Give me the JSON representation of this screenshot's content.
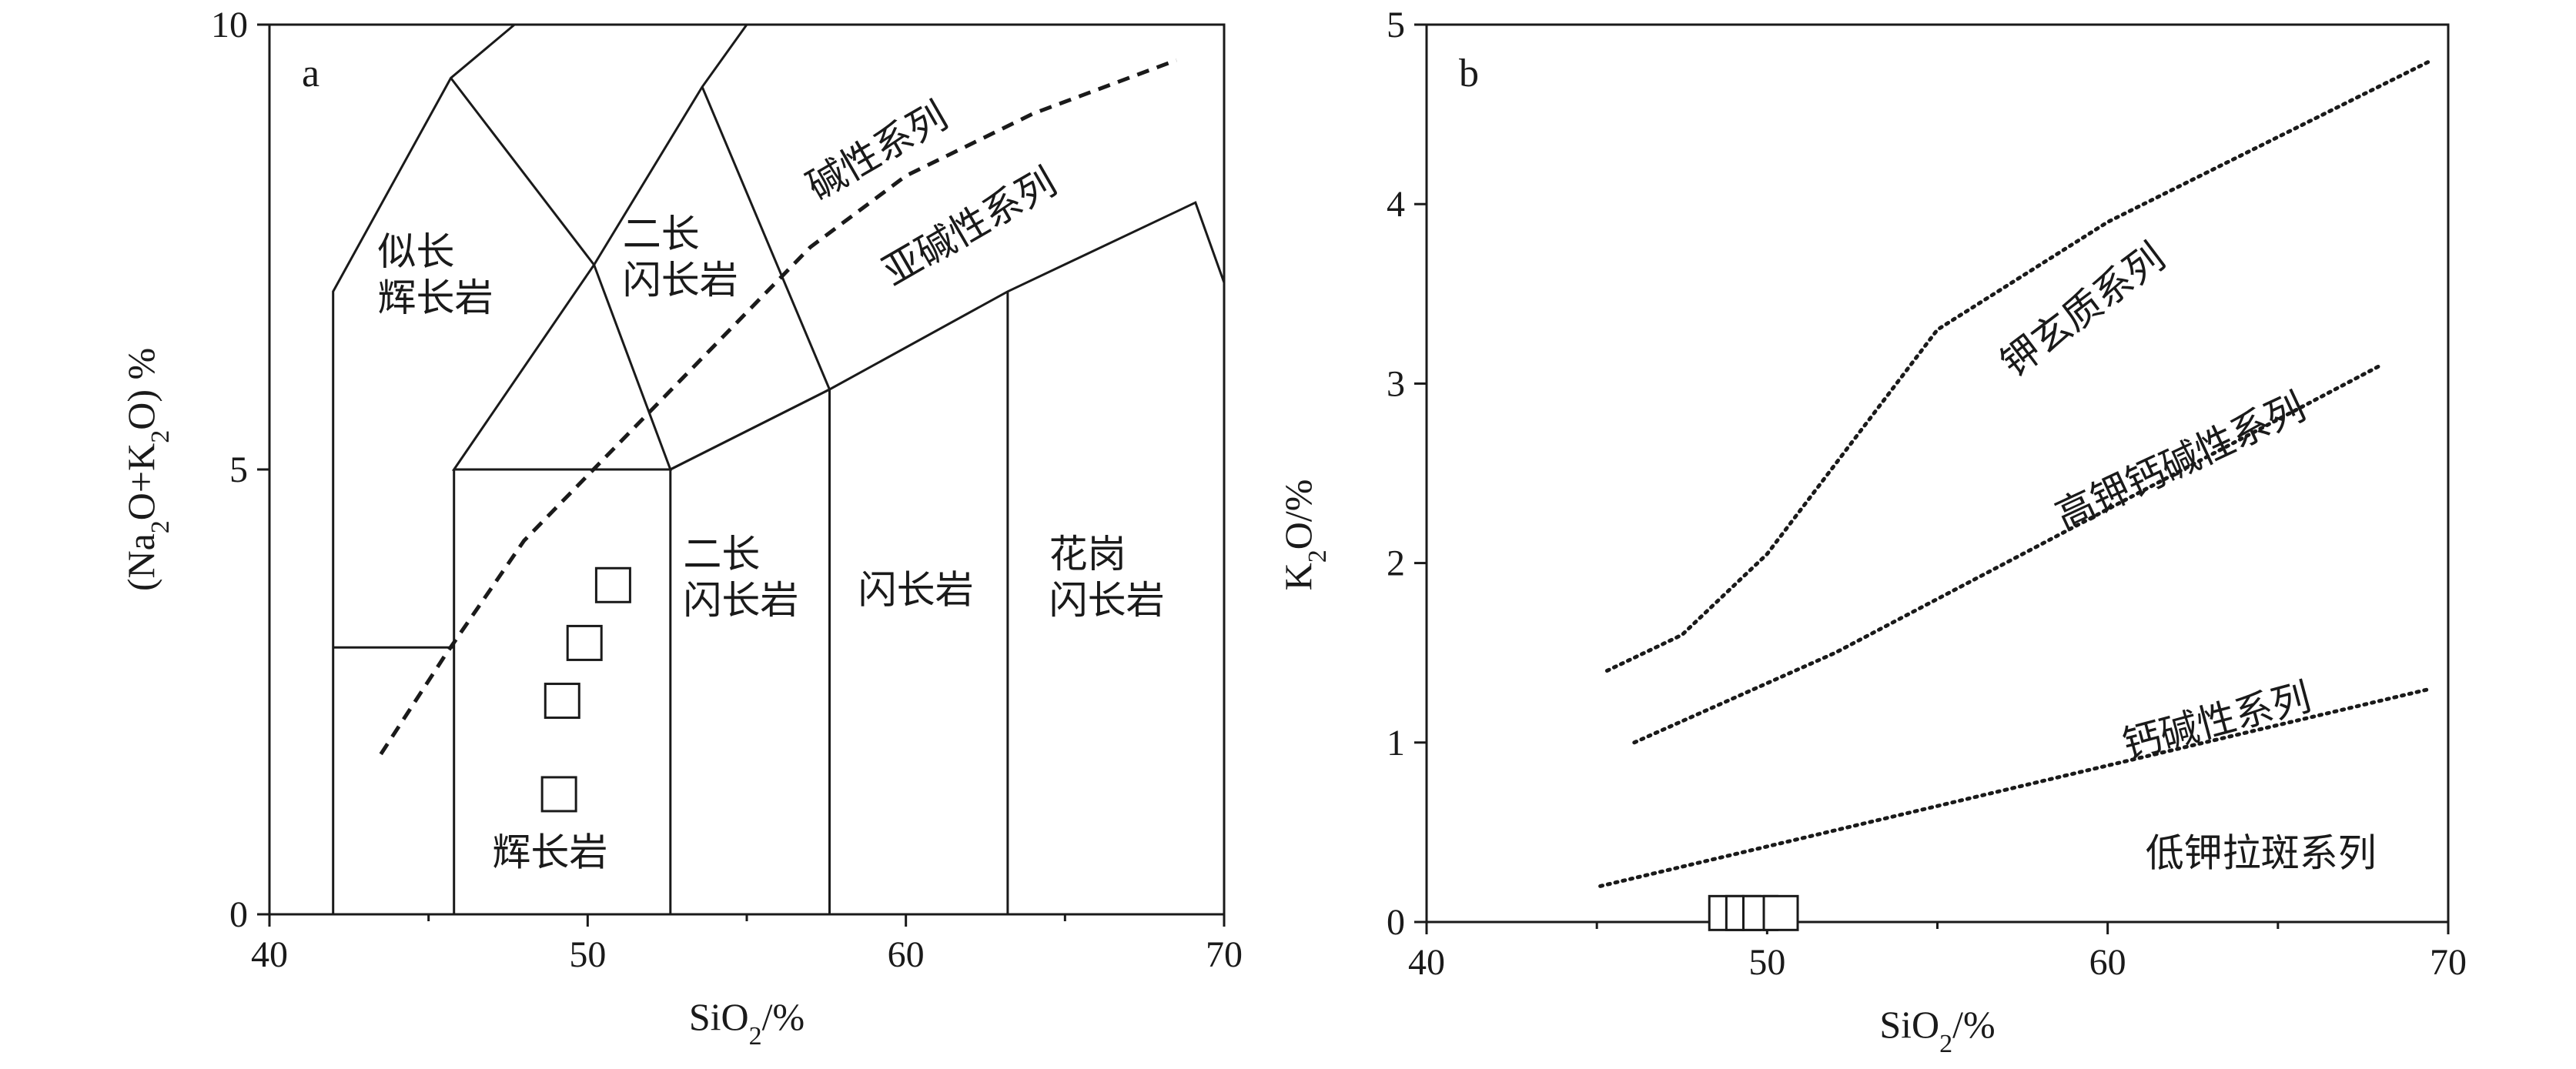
{
  "chart_data": [
    {
      "type": "scatter",
      "panel_label": "a",
      "xlabel": "SiO2/%",
      "ylabel": "(Na2O+K2O) %",
      "xlim": [
        40,
        70
      ],
      "ylim": [
        0,
        10
      ],
      "xticks": [
        40,
        50,
        60,
        70
      ],
      "yticks": [
        0,
        5,
        10
      ],
      "field_boundaries": [
        [
          [
            42,
            0
          ],
          [
            42,
            7
          ],
          [
            45.7,
            9.4
          ],
          [
            47.7,
            10
          ]
        ],
        [
          [
            45.7,
            9.4
          ],
          [
            50.2,
            7.3
          ],
          [
            53.6,
            9.3
          ],
          [
            55,
            10
          ]
        ],
        [
          [
            50.2,
            7.3
          ],
          [
            45.8,
            5
          ],
          [
            52.6,
            5
          ],
          [
            50.2,
            7.3
          ]
        ],
        [
          [
            53.6,
            9.3
          ],
          [
            57.6,
            5.9
          ],
          [
            52.6,
            5
          ]
        ],
        [
          [
            52.6,
            5
          ],
          [
            57.6,
            5.9
          ],
          [
            63.2,
            7
          ],
          [
            69.1,
            8
          ],
          [
            70,
            7.1
          ]
        ],
        [
          [
            42,
            3
          ],
          [
            45.8,
            3
          ]
        ],
        [
          [
            45.8,
            0
          ],
          [
            45.8,
            5
          ]
        ],
        [
          [
            52.6,
            0
          ],
          [
            52.6,
            5
          ]
        ],
        [
          [
            57.6,
            0
          ],
          [
            57.6,
            5.9
          ]
        ],
        [
          [
            63.2,
            0
          ],
          [
            63.2,
            7
          ]
        ]
      ],
      "series_divide": [
        [
          43.5,
          1.8
        ],
        [
          45.5,
          2.9
        ],
        [
          48,
          4.2
        ],
        [
          51,
          5.3
        ],
        [
          54,
          6.4
        ],
        [
          57,
          7.5
        ],
        [
          60,
          8.3
        ],
        [
          64,
          9
        ],
        [
          68.5,
          9.6
        ]
      ],
      "points": [
        {
          "x": 50.8,
          "y": 3.7
        },
        {
          "x": 49.9,
          "y": 3.05
        },
        {
          "x": 49.2,
          "y": 2.4
        },
        {
          "x": 49.1,
          "y": 1.35
        }
      ],
      "field_labels": [
        {
          "lines": [
            "似长",
            "辉长岩"
          ],
          "x": 43.4,
          "y": 7.3
        },
        {
          "lines": [
            "二长",
            "闪长岩"
          ],
          "x": 51.1,
          "y": 7.5
        },
        {
          "lines": [
            "二长",
            "闪长岩"
          ],
          "x": 53.0,
          "y": 3.9
        },
        {
          "lines": [
            "闪长岩"
          ],
          "x": 58.5,
          "y": 3.5
        },
        {
          "lines": [
            "花岗",
            "闪长岩"
          ],
          "x": 64.5,
          "y": 3.9
        },
        {
          "lines": [
            "辉长岩"
          ],
          "x": 47.0,
          "y": 0.55
        }
      ],
      "series_labels": [
        {
          "text": "碱性系列",
          "x": 59.3,
          "y": 8.45,
          "angle": -30
        },
        {
          "text": "亚碱性系列",
          "x": 62.2,
          "y": 7.6,
          "angle": -30
        }
      ]
    },
    {
      "type": "scatter",
      "panel_label": "b",
      "xlabel": "SiO2/%",
      "ylabel": "K2O/%",
      "xlim": [
        40,
        70
      ],
      "ylim": [
        0,
        5
      ],
      "xticks": [
        40,
        50,
        60,
        70
      ],
      "yticks": [
        0,
        1,
        2,
        3,
        4,
        5
      ],
      "lines": [
        [
          [
            45.3,
            1.4
          ],
          [
            47.5,
            1.6
          ],
          [
            50,
            2.05
          ],
          [
            55,
            3.3
          ],
          [
            60,
            3.9
          ],
          [
            69.5,
            4.8
          ]
        ],
        [
          [
            46.1,
            1.0
          ],
          [
            52,
            1.5
          ],
          [
            68,
            3.1
          ]
        ],
        [
          [
            45.1,
            0.2
          ],
          [
            69.5,
            1.3
          ]
        ]
      ],
      "points": [
        {
          "x": 48.8,
          "y": 0.05
        },
        {
          "x": 49.3,
          "y": 0.05
        },
        {
          "x": 49.8,
          "y": 0.05
        },
        {
          "x": 50.4,
          "y": 0.05
        }
      ],
      "field_labels": [
        {
          "text": "钾玄质系列",
          "x": 59.5,
          "y": 3.35,
          "angle": -37
        },
        {
          "text": "高钾钙碱性系列",
          "x": 62.3,
          "y": 2.5,
          "angle": -25
        },
        {
          "text": "钙碱性系列",
          "x": 63.3,
          "y": 1.05,
          "angle": -15
        },
        {
          "text": "低钾拉斑系列",
          "x": 64.5,
          "y": 0.31,
          "angle": 0
        }
      ]
    }
  ]
}
